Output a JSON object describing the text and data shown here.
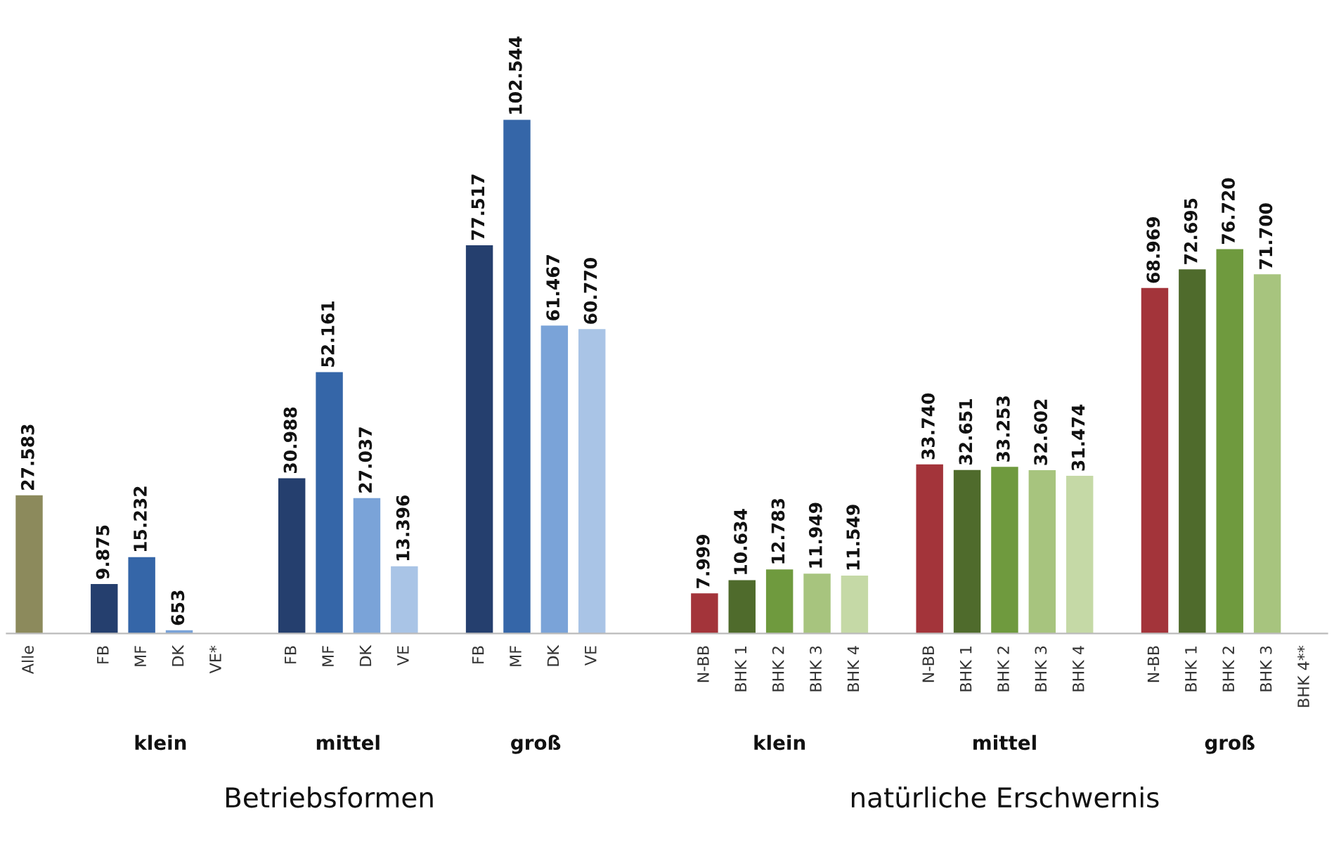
{
  "chart_data": {
    "type": "bar",
    "categories": [
      "Alle",
      null,
      "FB",
      "MF",
      "DK",
      "VE*",
      null,
      "FB",
      "MF",
      "DK",
      "VE",
      null,
      "FB",
      "MF",
      "DK",
      "VE",
      null,
      null,
      "N-BB",
      "BHK 1",
      "BHK 2",
      "BHK 3",
      "BHK 4",
      null,
      "N-BB",
      "BHK 1",
      "BHK 2",
      "BHK 3",
      "BHK 4",
      null,
      "N-BB",
      "BHK 1",
      "BHK 2",
      "BHK 3",
      "BHK 4**"
    ],
    "values": [
      27583,
      null,
      9875,
      15232,
      653,
      null,
      null,
      30988,
      52161,
      27037,
      13396,
      null,
      77517,
      102544,
      61467,
      60770,
      null,
      null,
      7999,
      10634,
      12783,
      11949,
      11549,
      null,
      33740,
      32651,
      33253,
      32602,
      31474,
      null,
      68969,
      72695,
      76720,
      71700,
      null
    ],
    "value_labels": [
      "27.583",
      null,
      "9.875",
      "15.232",
      "653",
      null,
      null,
      "30.988",
      "52.161",
      "27.037",
      "13.396",
      null,
      "77.517",
      "102.544",
      "61.467",
      "60.770",
      null,
      null,
      "7.999",
      "10.634",
      "12.783",
      "11.949",
      "11.549",
      null,
      "33.740",
      "32.651",
      "33.253",
      "32.602",
      "31.474",
      null,
      "68.969",
      "72.695",
      "76.720",
      "71.700",
      null
    ],
    "colors": [
      "#8c8a5c",
      null,
      "#253f6e",
      "#3566a8",
      "#7aa3d8",
      "#a9c4e6",
      null,
      "#253f6e",
      "#3566a8",
      "#7aa3d8",
      "#a9c4e6",
      null,
      "#253f6e",
      "#3566a8",
      "#7aa3d8",
      "#a9c4e6",
      null,
      null,
      "#a3343a",
      "#4f6b2c",
      "#6f9a3e",
      "#a7c47e",
      "#c5d9a6",
      null,
      "#a3343a",
      "#4f6b2c",
      "#6f9a3e",
      "#a7c47e",
      "#c5d9a6",
      null,
      "#a3343a",
      "#4f6b2c",
      "#6f9a3e",
      "#a7c47e",
      "#c5d9a6"
    ],
    "annotations": [
      "klein",
      "mittel",
      "groß",
      "Betriebsformen",
      "klein",
      "mittel",
      "groß",
      "natürliche Erschwernis"
    ]
  }
}
